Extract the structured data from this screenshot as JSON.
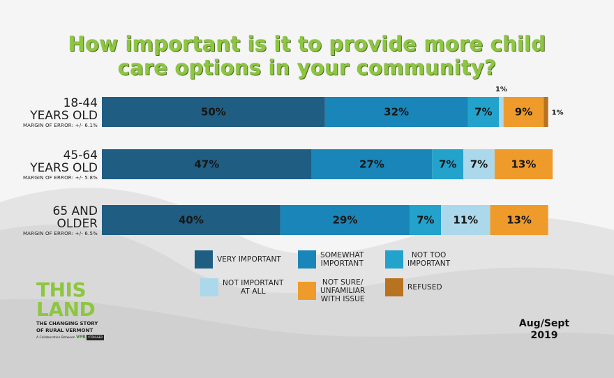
{
  "chart_data": {
    "type": "bar",
    "orientation": "horizontal",
    "stacked": true,
    "title": "How important is it to provide more child care options in your community?",
    "categories": [
      {
        "line1": "18-44",
        "line2": "YEARS OLD",
        "moe": "MARGIN OF ERROR: +/- 6.1%"
      },
      {
        "line1": "45-64",
        "line2": "YEARS OLD",
        "moe": "MARGIN OF ERROR: +/- 5.8%"
      },
      {
        "line1": "65 AND",
        "line2": "OLDER",
        "moe": "MARGIN OF ERROR: +/- 6.5%"
      }
    ],
    "series": [
      {
        "name": "VERY IMPORTANT",
        "color": "#1f5d82",
        "values": [
          50,
          47,
          40
        ],
        "labels": [
          "50%",
          "47%",
          "40%"
        ]
      },
      {
        "name": "SOMEWHAT IMPORTANT",
        "color": "#1985b8",
        "values": [
          32,
          27,
          29
        ],
        "labels": [
          "32%",
          "27%",
          "29%"
        ]
      },
      {
        "name": "NOT TOO IMPORTANT",
        "color": "#23a2cc",
        "values": [
          7,
          7,
          7
        ],
        "labels": [
          "7%",
          "7%",
          "7%"
        ]
      },
      {
        "name": "NOT IMPORTANT AT ALL",
        "color": "#acd8eb",
        "values": [
          1,
          7,
          11
        ],
        "labels": [
          "1%",
          "7%",
          "11%"
        ]
      },
      {
        "name": "NOT SURE/ UNFAMILIAR WITH ISSUE",
        "color": "#ee9b2c",
        "values": [
          9,
          13,
          13
        ],
        "labels": [
          "9%",
          "13%",
          "13%"
        ]
      },
      {
        "name": "REFUSED",
        "color": "#b7731f",
        "values": [
          1,
          0,
          0
        ],
        "labels": [
          "1%",
          "",
          ""
        ]
      }
    ],
    "xlim": [
      0,
      100
    ],
    "legend": "bottom"
  },
  "legend_lines": [
    [
      "VERY IMPORTANT"
    ],
    [
      "SOMEWHAT",
      "IMPORTANT"
    ],
    [
      "NOT TOO",
      "IMPORTANT"
    ],
    [
      "NOT IMPORTANT",
      "AT ALL"
    ],
    [
      "NOT SURE/",
      "UNFAMILIAR",
      "WITH ISSUE"
    ],
    [
      "REFUSED"
    ]
  ],
  "logo": {
    "line1": "THIS",
    "line2": "LAND",
    "sub1": "THE CHANGING STORY",
    "sub2": "OF RURAL VERMONT",
    "collab": "A Collaboration Between",
    "partner1": "VPR",
    "partner2": "VTDIGGER"
  },
  "date": {
    "line1": "Aug/Sept",
    "line2": "2019"
  }
}
